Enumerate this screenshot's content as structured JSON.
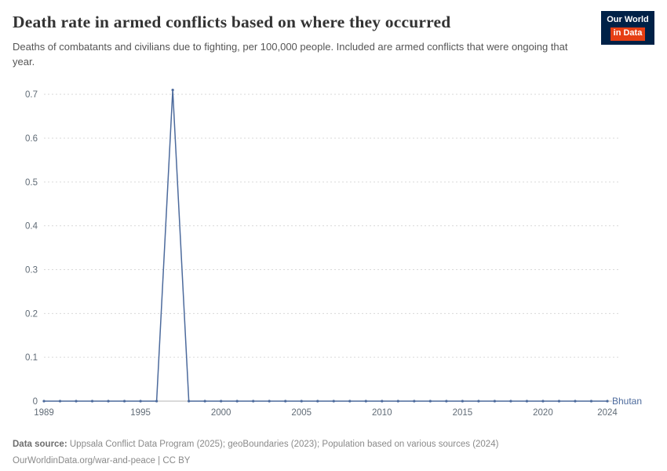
{
  "header": {
    "title": "Death rate in armed conflicts based on where they occurred",
    "subtitle": "Deaths of combatants and civilians due to fighting, per 100,000 people. Included are armed conflicts that were ongoing that year.",
    "logo": {
      "line1": "Our World",
      "line2": "in Data",
      "bg_color": "#002147",
      "accent_color": "#e63e13"
    }
  },
  "chart_data": {
    "type": "line",
    "title": "Death rate in armed conflicts based on where they occurred",
    "xlabel": "",
    "ylabel": "",
    "x": [
      1989,
      1990,
      1991,
      1992,
      1993,
      1994,
      1995,
      1996,
      1997,
      1998,
      1999,
      2000,
      2001,
      2002,
      2003,
      2004,
      2005,
      2006,
      2007,
      2008,
      2009,
      2010,
      2011,
      2012,
      2013,
      2014,
      2015,
      2016,
      2017,
      2018,
      2019,
      2020,
      2021,
      2022,
      2023,
      2024
    ],
    "series": [
      {
        "name": "Bhutan",
        "values": [
          0,
          0,
          0,
          0,
          0,
          0,
          0,
          0,
          0.71,
          0,
          0,
          0,
          0,
          0,
          0,
          0,
          0,
          0,
          0,
          0,
          0,
          0,
          0,
          0,
          0,
          0,
          0,
          0,
          0,
          0,
          0,
          0,
          0,
          0,
          0,
          0
        ]
      }
    ],
    "ylim": [
      0,
      0.72
    ],
    "yticks": [
      0,
      0.1,
      0.2,
      0.3,
      0.4,
      0.5,
      0.6,
      0.7
    ],
    "xticks": [
      1989,
      1995,
      2000,
      2005,
      2010,
      2015,
      2020,
      2024
    ],
    "grid": "dashed-horizontal",
    "legend_position": "end-of-line",
    "line_color": "#4c6a9c",
    "label_color": "#4c6a9c",
    "grid_color": "#d9d9d9",
    "axis_color": "#b5b5b5",
    "tick_color": "#606b76"
  },
  "footer": {
    "source_label": "Data source:",
    "source_text": " Uppsala Conflict Data Program (2025); geoBoundaries (2023); Population based on various sources (2024)",
    "link_line": "OurWorldinData.org/war-and-peace | CC BY"
  }
}
